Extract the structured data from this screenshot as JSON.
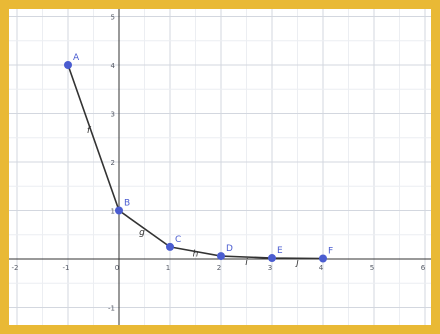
{
  "chart_data": {
    "type": "line",
    "title": "",
    "xlabel": "",
    "ylabel": "",
    "xlim": [
      -2,
      6
    ],
    "ylim": [
      -1.5,
      5
    ],
    "grid": true,
    "x_ticks": [
      -2,
      -1,
      0,
      1,
      2,
      3,
      4,
      5,
      6
    ],
    "y_ticks": [
      -1,
      1,
      2,
      3,
      4,
      5
    ],
    "points": [
      {
        "label": "A",
        "x": -1,
        "y": 4
      },
      {
        "label": "B",
        "x": 0,
        "y": 1
      },
      {
        "label": "C",
        "x": 1,
        "y": 0.25
      },
      {
        "label": "D",
        "x": 2,
        "y": 0.06
      },
      {
        "label": "E",
        "x": 3,
        "y": 0.02
      },
      {
        "label": "F",
        "x": 4,
        "y": 0.01
      }
    ],
    "segment_labels": [
      {
        "label": "f",
        "x": -0.6,
        "y": 2.6
      },
      {
        "label": "g",
        "x": 0.45,
        "y": 0.5
      },
      {
        "label": "h",
        "x": 1.5,
        "y": 0.05
      },
      {
        "label": "i",
        "x": 2.5,
        "y": -0.12
      },
      {
        "label": "j",
        "x": 3.5,
        "y": -0.12
      }
    ],
    "colors": {
      "frame": "#e9b935",
      "grid": "#dcdfe6",
      "axis": "#333333",
      "line": "#333333",
      "point": "#4a5cd0"
    }
  }
}
